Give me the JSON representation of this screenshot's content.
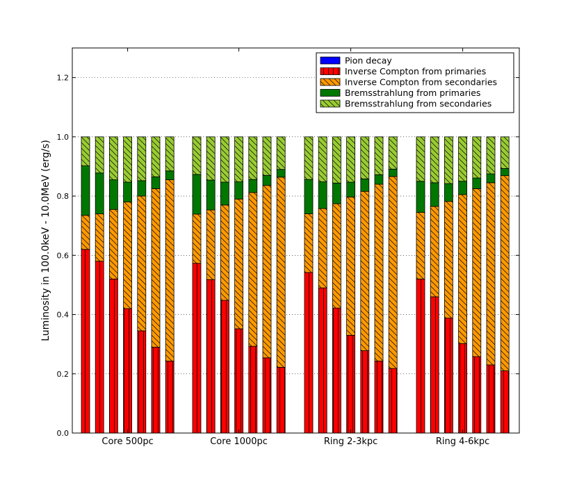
{
  "chart_data": {
    "type": "bar",
    "stacked": true,
    "title": "",
    "xlabel": "",
    "ylabel": "Luminosity in 100.0keV -  10.0MeV (erg/s)",
    "ylim": [
      0,
      1.3
    ],
    "yticks": [
      "0.0",
      "0.2",
      "0.4",
      "0.6",
      "0.8",
      "1.0",
      "1.2"
    ],
    "grid": true,
    "legend_position": "top-right",
    "groups": [
      "Core 500pc",
      "Core 1000pc",
      "Ring 2-3kpc",
      "Ring 4-6kpc"
    ],
    "bars_per_group": 7,
    "series": [
      {
        "name": "Pion decay",
        "color": "#0000ff",
        "hatch": "none",
        "values": [
          [
            0,
            0,
            0,
            0,
            0,
            0,
            0
          ],
          [
            0,
            0,
            0,
            0,
            0,
            0,
            0
          ],
          [
            0,
            0,
            0,
            0,
            0,
            0,
            0
          ],
          [
            0,
            0,
            0,
            0,
            0,
            0,
            0
          ]
        ]
      },
      {
        "name": "Inverse Compton from primaries",
        "color": "#ff0000",
        "hatch": "vertical",
        "values": [
          [
            0.62,
            0.58,
            0.52,
            0.42,
            0.345,
            0.29,
            0.243
          ],
          [
            0.573,
            0.518,
            0.448,
            0.352,
            0.293,
            0.254,
            0.222
          ],
          [
            0.542,
            0.49,
            0.422,
            0.33,
            0.278,
            0.243,
            0.218
          ],
          [
            0.52,
            0.46,
            0.388,
            0.302,
            0.258,
            0.23,
            0.21
          ]
        ]
      },
      {
        "name": "Inverse Compton from secondaries",
        "color": "#ff9900",
        "hatch": "diagonal",
        "values": [
          [
            0.115,
            0.16,
            0.235,
            0.36,
            0.455,
            0.535,
            0.612
          ],
          [
            0.166,
            0.235,
            0.322,
            0.438,
            0.519,
            0.582,
            0.642
          ],
          [
            0.198,
            0.268,
            0.352,
            0.467,
            0.538,
            0.597,
            0.648
          ],
          [
            0.225,
            0.305,
            0.394,
            0.503,
            0.567,
            0.615,
            0.659
          ]
        ]
      },
      {
        "name": "Bremsstrahlung from primaries",
        "color": "#007700",
        "hatch": "none",
        "values": [
          [
            0.167,
            0.138,
            0.1,
            0.067,
            0.052,
            0.04,
            0.03
          ],
          [
            0.134,
            0.101,
            0.077,
            0.058,
            0.044,
            0.034,
            0.026
          ],
          [
            0.116,
            0.09,
            0.07,
            0.05,
            0.042,
            0.032,
            0.025
          ],
          [
            0.105,
            0.08,
            0.06,
            0.045,
            0.036,
            0.03,
            0.024
          ]
        ]
      },
      {
        "name": "Bremsstrahlung from secondaries",
        "color": "#99cc33",
        "hatch": "diagonal",
        "values": [
          [
            0.098,
            0.122,
            0.145,
            0.153,
            0.148,
            0.135,
            0.115
          ],
          [
            0.127,
            0.146,
            0.153,
            0.152,
            0.144,
            0.13,
            0.11
          ],
          [
            0.144,
            0.152,
            0.156,
            0.153,
            0.142,
            0.128,
            0.109
          ],
          [
            0.15,
            0.155,
            0.158,
            0.15,
            0.139,
            0.125,
            0.107
          ]
        ]
      }
    ]
  }
}
